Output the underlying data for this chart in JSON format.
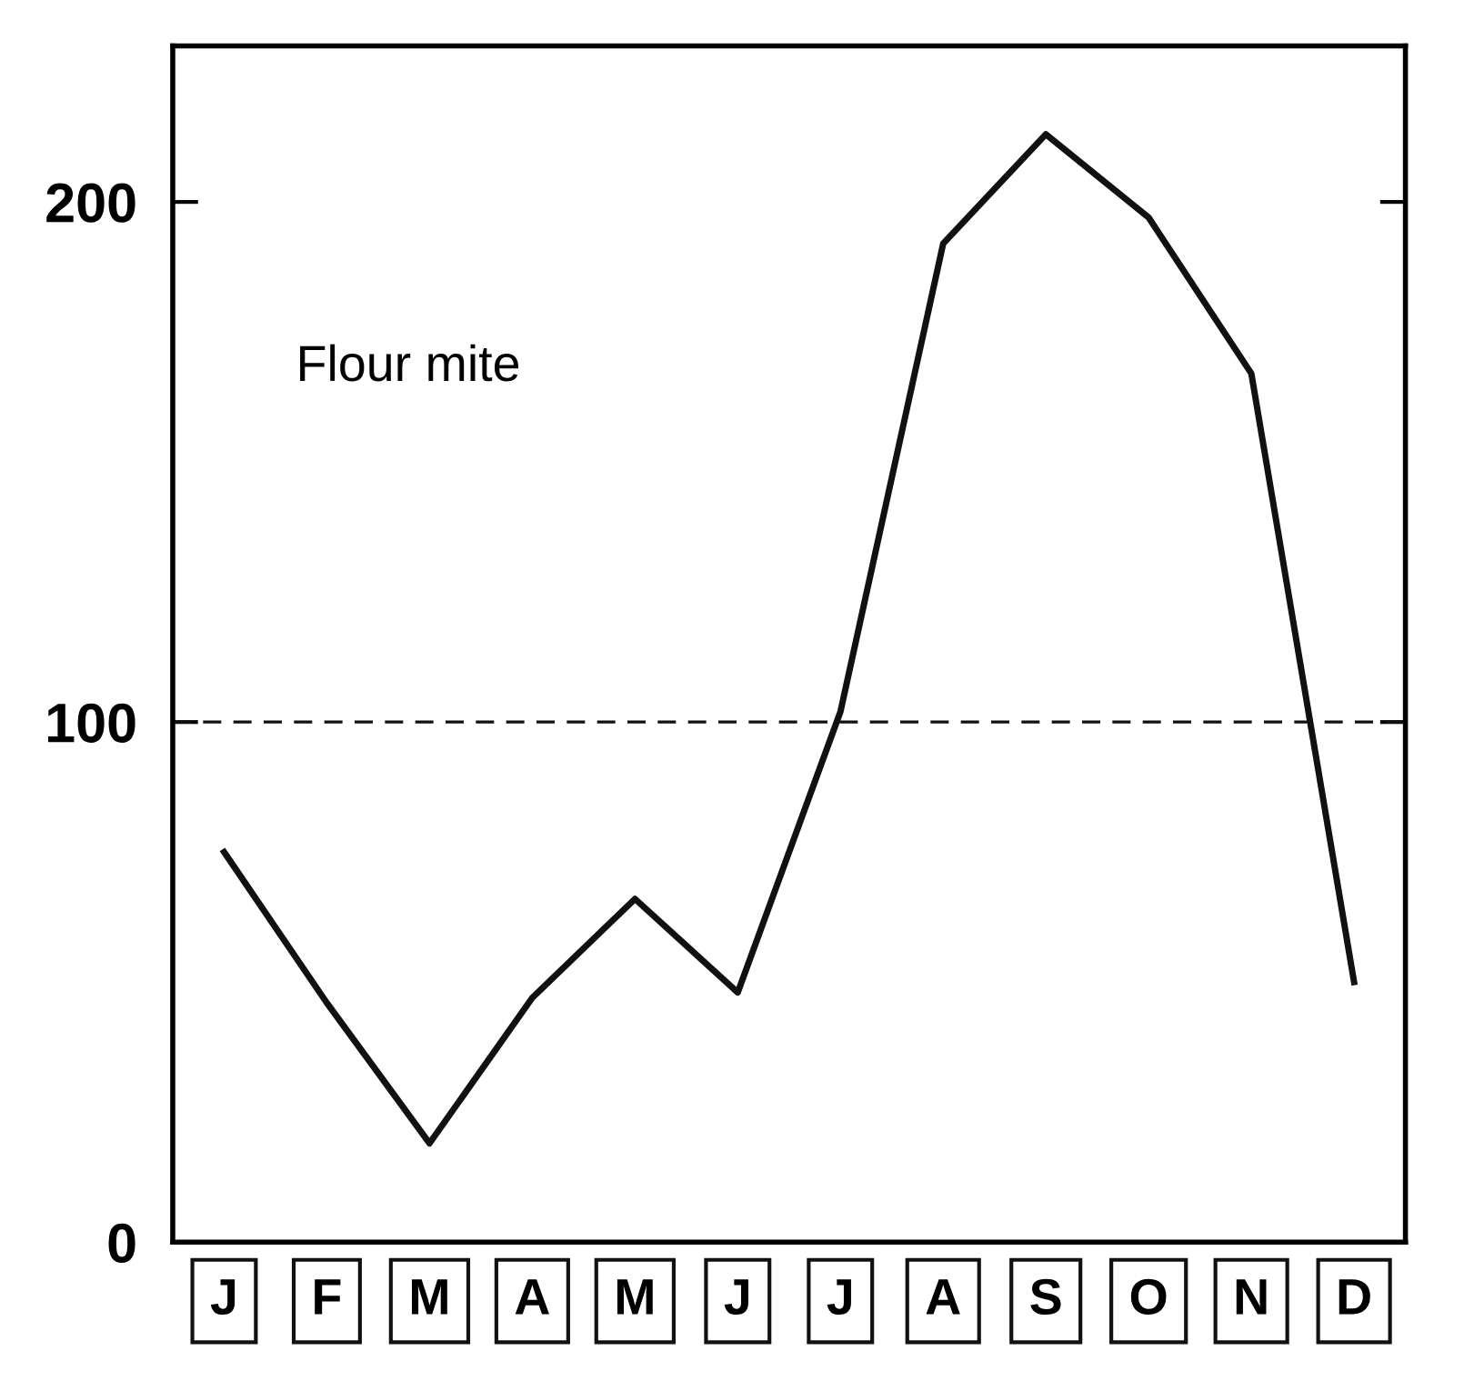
{
  "chart_data": {
    "type": "line",
    "categories": [
      "J",
      "F",
      "M",
      "A",
      "M",
      "J",
      "J",
      "A",
      "S",
      "O",
      "N",
      "D"
    ],
    "values": [
      75,
      46,
      19,
      47,
      66,
      48,
      102,
      192,
      213,
      197,
      167,
      50
    ],
    "color": "#111111",
    "ylim": [
      0,
      230
    ],
    "yticks": [
      0,
      100,
      200
    ],
    "ref_lines": [
      {
        "axis": "y",
        "value": 100,
        "color": "#111111",
        "line_style": "dashed"
      }
    ],
    "annotations": [
      "Flour mite"
    ],
    "grid": false,
    "legend": false,
    "marker": "none",
    "line_style": "solid"
  }
}
